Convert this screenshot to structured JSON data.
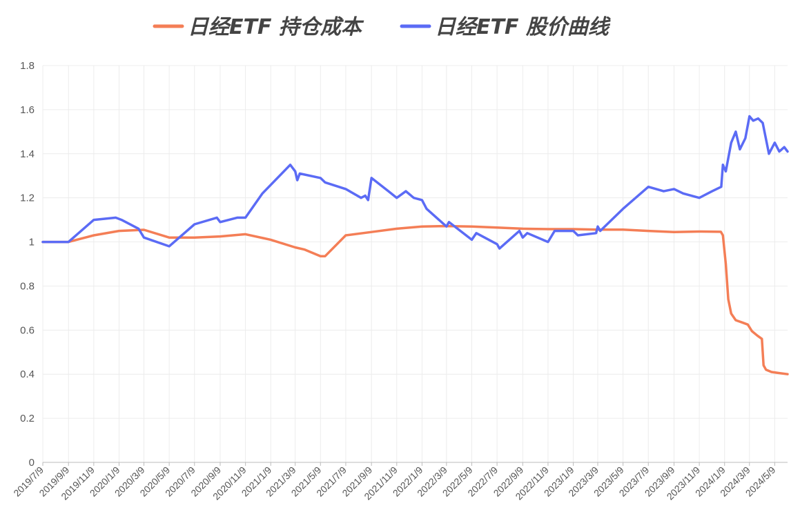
{
  "chart_data": {
    "type": "line",
    "title": "",
    "xlabel": "",
    "ylabel": "",
    "ylim": [
      0,
      1.8
    ],
    "y_ticks": [
      "0",
      "0.2",
      "0.4",
      "0.6",
      "0.8",
      "1",
      "1.2",
      "1.4",
      "1.6",
      "1.8"
    ],
    "x_range": [
      "2019/7/9",
      "2024/6/9"
    ],
    "x_tick_labels": [
      "2019/7/9",
      "2019/9/9",
      "2019/11/9",
      "2020/1/9",
      "2020/3/9",
      "2020/5/9",
      "2020/7/9",
      "2020/9/9",
      "2020/11/9",
      "2021/1/9",
      "2021/3/9",
      "2021/5/9",
      "2021/7/9",
      "2021/9/9",
      "2021/11/9",
      "2022/1/9",
      "2022/3/9",
      "2022/5/9",
      "2022/7/9",
      "2022/9/9",
      "2022/11/9",
      "2023/1/9",
      "2023/3/9",
      "2023/5/9",
      "2023/7/9",
      "2023/9/9",
      "2023/11/9",
      "2024/1/9",
      "2024/3/9",
      "2024/5/9"
    ],
    "grid": true,
    "legend_position": "top-center",
    "series": [
      {
        "name": "日经ETF 持仓成本",
        "color": "#F47E56",
        "points": [
          [
            "2019/7/9",
            1.0
          ],
          [
            "2019/9/9",
            1.0
          ],
          [
            "2019/11/9",
            1.03
          ],
          [
            "2020/1/9",
            1.05
          ],
          [
            "2020/3/9",
            1.055
          ],
          [
            "2020/5/9",
            1.02
          ],
          [
            "2020/7/9",
            1.02
          ],
          [
            "2020/9/9",
            1.025
          ],
          [
            "2020/11/9",
            1.035
          ],
          [
            "2021/1/9",
            1.01
          ],
          [
            "2021/3/9",
            0.975
          ],
          [
            "2021/4/1",
            0.965
          ],
          [
            "2021/5/9",
            0.935
          ],
          [
            "2021/5/20",
            0.935
          ],
          [
            "2021/7/9",
            1.03
          ],
          [
            "2021/9/9",
            1.045
          ],
          [
            "2021/11/9",
            1.06
          ],
          [
            "2022/1/9",
            1.07
          ],
          [
            "2022/3/9",
            1.072
          ],
          [
            "2022/5/9",
            1.07
          ],
          [
            "2022/7/9",
            1.065
          ],
          [
            "2022/9/9",
            1.06
          ],
          [
            "2022/11/9",
            1.058
          ],
          [
            "2023/1/9",
            1.058
          ],
          [
            "2023/3/9",
            1.056
          ],
          [
            "2023/5/9",
            1.056
          ],
          [
            "2023/7/9",
            1.05
          ],
          [
            "2023/9/9",
            1.045
          ],
          [
            "2023/11/9",
            1.047
          ],
          [
            "2023/12/31",
            1.046
          ],
          [
            "2024/1/5",
            1.03
          ],
          [
            "2024/1/12",
            0.9
          ],
          [
            "2024/1/18",
            0.74
          ],
          [
            "2024/1/25",
            0.675
          ],
          [
            "2024/2/5",
            0.645
          ],
          [
            "2024/2/20",
            0.635
          ],
          [
            "2024/3/5",
            0.625
          ],
          [
            "2024/3/15",
            0.595
          ],
          [
            "2024/3/28",
            0.575
          ],
          [
            "2024/4/8",
            0.56
          ],
          [
            "2024/4/12",
            0.44
          ],
          [
            "2024/4/18",
            0.42
          ],
          [
            "2024/5/1",
            0.41
          ],
          [
            "2024/5/20",
            0.405
          ],
          [
            "2024/6/9",
            0.4
          ]
        ]
      },
      {
        "name": "日经ETF 股价曲线",
        "color": "#5B6BF5",
        "points": [
          [
            "2019/7/9",
            1.0
          ],
          [
            "2019/9/9",
            1.0
          ],
          [
            "2019/11/9",
            1.1
          ],
          [
            "2020/1/1",
            1.11
          ],
          [
            "2020/1/15",
            1.1
          ],
          [
            "2020/2/25",
            1.06
          ],
          [
            "2020/3/9",
            1.02
          ],
          [
            "2020/5/9",
            0.98
          ],
          [
            "2020/7/9",
            1.08
          ],
          [
            "2020/9/1",
            1.11
          ],
          [
            "2020/9/9",
            1.09
          ],
          [
            "2020/10/20",
            1.11
          ],
          [
            "2020/11/9",
            1.11
          ],
          [
            "2020/12/20",
            1.22
          ],
          [
            "2021/2/25",
            1.35
          ],
          [
            "2021/3/9",
            1.32
          ],
          [
            "2021/3/14",
            1.28
          ],
          [
            "2021/3/20",
            1.31
          ],
          [
            "2021/5/9",
            1.29
          ],
          [
            "2021/5/20",
            1.27
          ],
          [
            "2021/7/9",
            1.24
          ],
          [
            "2021/8/15",
            1.2
          ],
          [
            "2021/8/25",
            1.21
          ],
          [
            "2021/9/1",
            1.19
          ],
          [
            "2021/9/9",
            1.29
          ],
          [
            "2021/10/20",
            1.23
          ],
          [
            "2021/11/9",
            1.2
          ],
          [
            "2021/12/1",
            1.23
          ],
          [
            "2021/12/20",
            1.2
          ],
          [
            "2022/1/9",
            1.19
          ],
          [
            "2022/1/20",
            1.15
          ],
          [
            "2022/3/9",
            1.07
          ],
          [
            "2022/3/15",
            1.09
          ],
          [
            "2022/5/9",
            1.01
          ],
          [
            "2022/5/20",
            1.04
          ],
          [
            "2022/7/9",
            0.99
          ],
          [
            "2022/7/15",
            0.97
          ],
          [
            "2022/9/1",
            1.05
          ],
          [
            "2022/9/9",
            1.02
          ],
          [
            "2022/9/20",
            1.04
          ],
          [
            "2022/11/9",
            1.0
          ],
          [
            "2022/11/25",
            1.05
          ],
          [
            "2023/1/9",
            1.05
          ],
          [
            "2023/1/20",
            1.03
          ],
          [
            "2023/3/5",
            1.04
          ],
          [
            "2023/3/9",
            1.07
          ],
          [
            "2023/3/15",
            1.05
          ],
          [
            "2023/5/9",
            1.15
          ],
          [
            "2023/7/9",
            1.25
          ],
          [
            "2023/8/15",
            1.23
          ],
          [
            "2023/9/9",
            1.24
          ],
          [
            "2023/10/1",
            1.22
          ],
          [
            "2023/11/9",
            1.2
          ],
          [
            "2023/12/10",
            1.23
          ],
          [
            "2024/1/1",
            1.25
          ],
          [
            "2024/1/5",
            1.35
          ],
          [
            "2024/1/12",
            1.32
          ],
          [
            "2024/1/25",
            1.45
          ],
          [
            "2024/2/5",
            1.5
          ],
          [
            "2024/2/15",
            1.42
          ],
          [
            "2024/2/28",
            1.47
          ],
          [
            "2024/3/9",
            1.57
          ],
          [
            "2024/3/18",
            1.55
          ],
          [
            "2024/3/30",
            1.56
          ],
          [
            "2024/4/10",
            1.54
          ],
          [
            "2024/4/25",
            1.4
          ],
          [
            "2024/5/9",
            1.45
          ],
          [
            "2024/5/20",
            1.41
          ],
          [
            "2024/6/1",
            1.43
          ],
          [
            "2024/6/9",
            1.41
          ]
        ]
      }
    ]
  }
}
